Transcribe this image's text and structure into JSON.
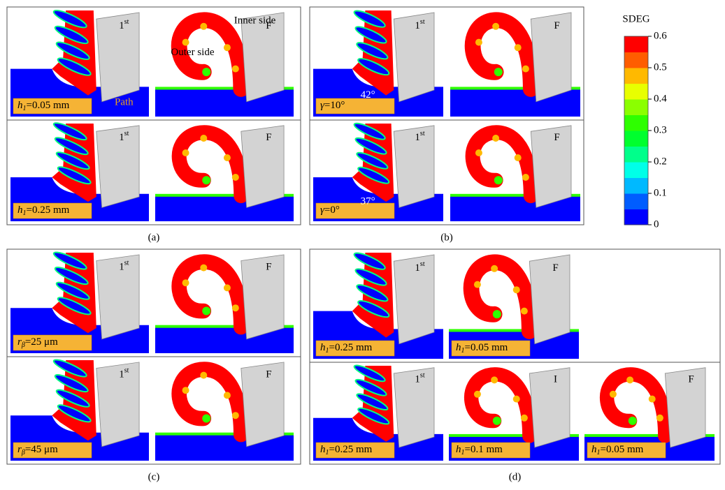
{
  "colorbar": {
    "title": "SDEG",
    "range": [
      0,
      0.6
    ],
    "ticks": [
      0,
      0.1,
      0.2,
      0.3,
      0.4,
      0.5,
      0.6
    ],
    "colors": [
      "#0000ff",
      "#005dff",
      "#00b9ff",
      "#00ffe8",
      "#00ff8b",
      "#00ff2e",
      "#2eff00",
      "#8bff00",
      "#e8ff00",
      "#ffb900",
      "#ff5d00",
      "#ff0000"
    ]
  },
  "panels": [
    {
      "label": "(a)",
      "rows": [
        [
          {
            "stage": {
              "base": "1",
              "sup": "st"
            },
            "param": {
              "var": "h",
              "sub": "1",
              "rest": "=0.05 mm"
            },
            "annotations": [
              "Path"
            ]
          },
          {
            "stage": {
              "base": "F"
            },
            "annotations": [
              "Inner side",
              "Outer side"
            ]
          }
        ],
        [
          {
            "stage": {
              "base": "1",
              "sup": "st"
            },
            "param": {
              "var": "h",
              "sub": "1",
              "rest": "=0.25 mm"
            }
          },
          {
            "stage": {
              "base": "F"
            }
          }
        ]
      ]
    },
    {
      "label": "(b)",
      "rows": [
        [
          {
            "stage": {
              "base": "1",
              "sup": "st"
            },
            "param": {
              "var": "γ",
              "rest": "=10°"
            },
            "annotations": [
              "42°"
            ]
          },
          {
            "stage": {
              "base": "F"
            }
          }
        ],
        [
          {
            "stage": {
              "base": "1",
              "sup": "st"
            },
            "param": {
              "var": "γ",
              "rest": "=0°"
            },
            "annotations": [
              "37°"
            ]
          },
          {
            "stage": {
              "base": "F"
            }
          }
        ]
      ]
    },
    {
      "label": "(c)",
      "rows": [
        [
          {
            "stage": {
              "base": "1",
              "sup": "st"
            },
            "param": {
              "var": "r",
              "sub": "β",
              "rest": "=25 μm"
            }
          },
          {
            "stage": {
              "base": "F"
            }
          }
        ],
        [
          {
            "stage": {
              "base": "1",
              "sup": "st"
            },
            "param": {
              "var": "r",
              "sub": "β",
              "rest": "=45 μm"
            }
          },
          {
            "stage": {
              "base": "F"
            }
          }
        ]
      ]
    },
    {
      "label": "(d)",
      "rows": [
        [
          {
            "stage": {
              "base": "1",
              "sup": "st"
            },
            "param": {
              "var": "h",
              "sub": "1",
              "rest": "=0.25 mm"
            }
          },
          {
            "stage": {
              "base": "F"
            },
            "param": {
              "var": "h",
              "sub": "1",
              "rest": "=0.05 mm"
            }
          }
        ],
        [
          {
            "stage": {
              "base": "1",
              "sup": "st"
            },
            "param": {
              "var": "h",
              "sub": "1",
              "rest": "=0.25 mm"
            }
          },
          {
            "stage": {
              "base": "I"
            },
            "param": {
              "var": "h",
              "sub": "1",
              "rest": "=0.1 mm"
            }
          },
          {
            "stage": {
              "base": "F"
            },
            "param": {
              "var": "h",
              "sub": "1",
              "rest": "=0.05 mm"
            }
          }
        ]
      ]
    }
  ]
}
